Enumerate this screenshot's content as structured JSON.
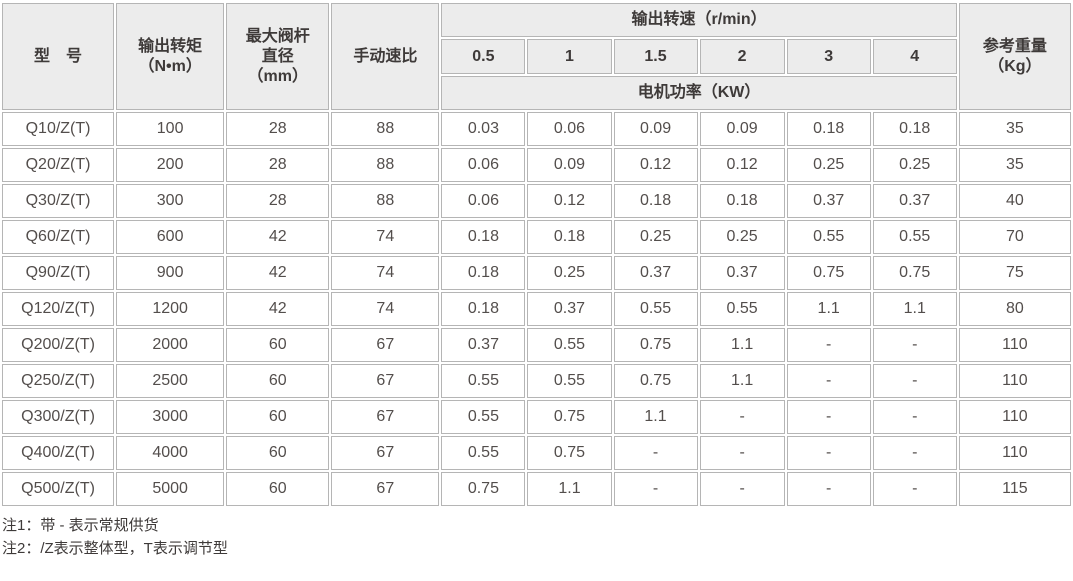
{
  "table": {
    "header": {
      "model": "型　号",
      "torque": "输出转矩\n（N•m）",
      "stem": "最大阀杆\n直径\n（mm）",
      "manual_ratio": "手动速比",
      "output_speed": "输出转速（r/min）",
      "speeds": [
        "0.5",
        "1",
        "1.5",
        "2",
        "3",
        "4"
      ],
      "motor_power": "电机功率（KW）",
      "weight": "参考重量\n（Kg）"
    },
    "rows": [
      [
        "Q10/Z(T)",
        "100",
        "28",
        "88",
        "0.03",
        "0.06",
        "0.09",
        "0.09",
        "0.18",
        "0.18",
        "35"
      ],
      [
        "Q20/Z(T)",
        "200",
        "28",
        "88",
        "0.06",
        "0.09",
        "0.12",
        "0.12",
        "0.25",
        "0.25",
        "35"
      ],
      [
        "Q30/Z(T)",
        "300",
        "28",
        "88",
        "0.06",
        "0.12",
        "0.18",
        "0.18",
        "0.37",
        "0.37",
        "40"
      ],
      [
        "Q60/Z(T)",
        "600",
        "42",
        "74",
        "0.18",
        "0.18",
        "0.25",
        "0.25",
        "0.55",
        "0.55",
        "70"
      ],
      [
        "Q90/Z(T)",
        "900",
        "42",
        "74",
        "0.18",
        "0.25",
        "0.37",
        "0.37",
        "0.75",
        "0.75",
        "75"
      ],
      [
        "Q120/Z(T)",
        "1200",
        "42",
        "74",
        "0.18",
        "0.37",
        "0.55",
        "0.55",
        "1.1",
        "1.1",
        "80"
      ],
      [
        "Q200/Z(T)",
        "2000",
        "60",
        "67",
        "0.37",
        "0.55",
        "0.75",
        "1.1",
        "-",
        "-",
        "110"
      ],
      [
        "Q250/Z(T)",
        "2500",
        "60",
        "67",
        "0.55",
        "0.55",
        "0.75",
        "1.1",
        "-",
        "-",
        "110"
      ],
      [
        "Q300/Z(T)",
        "3000",
        "60",
        "67",
        "0.55",
        "0.75",
        "1.1",
        "-",
        "-",
        "-",
        "110"
      ],
      [
        "Q400/Z(T)",
        "4000",
        "60",
        "67",
        "0.55",
        "0.75",
        "-",
        "-",
        "-",
        "-",
        "110"
      ],
      [
        "Q500/Z(T)",
        "5000",
        "60",
        "67",
        "0.75",
        "1.1",
        "-",
        "-",
        "-",
        "-",
        "115"
      ]
    ]
  },
  "notes": [
    "注1：带 - 表示常规供货",
    "注2：/Z表示整体型，T表示调节型"
  ],
  "colors": {
    "header_bg": "#ececec",
    "border": "#b5b5b5",
    "header_text": "#3e3a39",
    "body_text": "#534e4c"
  }
}
